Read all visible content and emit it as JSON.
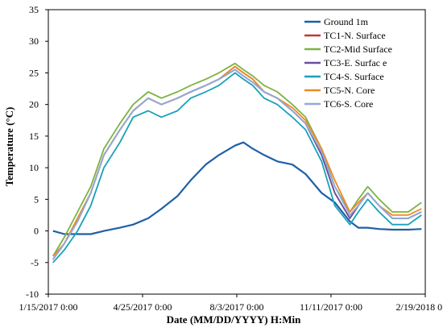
{
  "chart_data": {
    "type": "line",
    "title": "",
    "xlabel": "Date (MM/DD/YYYY) H:Min",
    "ylabel": "Temperature (°C)",
    "xlim": [
      "1/15/2017 0:00",
      "2/19/2018 0:00"
    ],
    "x_ticks": [
      "1/15/2017 0:00",
      "4/25/2017 0:00",
      "8/3/2017 0:00",
      "11/11/2017 0:00",
      "2/19/2018 0:00"
    ],
    "ylim": [
      -10,
      35
    ],
    "y_ticks": [
      "-10",
      "-5",
      "0",
      "5",
      "10",
      "15",
      "20",
      "25",
      "30",
      "35"
    ],
    "grid": false,
    "legend_position": "top-right",
    "x": [
      "2017-01-20",
      "2017-02-01",
      "2017-02-15",
      "2017-03-01",
      "2017-03-15",
      "2017-04-01",
      "2017-04-15",
      "2017-05-01",
      "2017-05-15",
      "2017-06-01",
      "2017-06-15",
      "2017-07-01",
      "2017-07-15",
      "2017-08-01",
      "2017-08-10",
      "2017-08-20",
      "2017-09-01",
      "2017-09-15",
      "2017-10-01",
      "2017-10-15",
      "2017-11-01",
      "2017-11-15",
      "2017-12-01",
      "2017-12-10",
      "2017-12-20",
      "2018-01-01",
      "2018-01-15",
      "2018-02-01",
      "2018-02-15"
    ],
    "series": [
      {
        "name": "Ground 1m",
        "color": "#1F5FA8",
        "values": [
          0,
          -0.5,
          -0.5,
          -0.5,
          0,
          0.5,
          1,
          2,
          3.5,
          5.5,
          8,
          10.5,
          12,
          13.5,
          14,
          13,
          12,
          11,
          10.5,
          9,
          6,
          4.5,
          1.5,
          0.5,
          0.5,
          0.3,
          0.2,
          0.2,
          0.3
        ]
      },
      {
        "name": "TC1-N. Surface",
        "color": "#C0392B",
        "values": [
          -4.5,
          -2,
          2,
          6,
          12,
          16,
          19,
          21,
          20,
          21,
          22,
          23,
          24,
          26,
          25,
          24,
          22,
          21,
          19,
          17,
          12,
          6,
          2,
          4,
          6,
          4,
          2,
          2,
          3
        ]
      },
      {
        "name": "TC2-Mid Surface",
        "color": "#7CB342",
        "values": [
          -4,
          -1,
          3,
          7,
          13,
          17,
          20,
          22,
          21,
          22,
          23,
          24,
          25,
          26.5,
          25.5,
          24.5,
          23,
          22,
          20,
          18,
          13,
          7,
          3,
          5,
          7,
          5,
          3,
          3,
          4.5
        ]
      },
      {
        "name": "TC3-E. Surfac e",
        "color": "#6A4FA0",
        "values": [
          -4.5,
          -2,
          1.5,
          6,
          12,
          16,
          19,
          21,
          20,
          21,
          22,
          23,
          24,
          25.5,
          24.5,
          23.5,
          22,
          21,
          19,
          17,
          12,
          6,
          2,
          4,
          6,
          4,
          2,
          2,
          3
        ]
      },
      {
        "name": "TC4-S. Surface",
        "color": "#17A2B8",
        "values": [
          -5,
          -3,
          0,
          4,
          10,
          14,
          18,
          19,
          18,
          19,
          21,
          22,
          23,
          25,
          24,
          23,
          21,
          20,
          18,
          16,
          11,
          4,
          1,
          3,
          5,
          3,
          1,
          1,
          2.5
        ]
      },
      {
        "name": "TC5-N. Core",
        "color": "#F08A24",
        "values": [
          -4,
          -2,
          2,
          6,
          12,
          16,
          19,
          21,
          20,
          21,
          22,
          23,
          24,
          26,
          25,
          24,
          22,
          21,
          19.5,
          17.5,
          13,
          8,
          3,
          4.5,
          6,
          4,
          2.5,
          2.5,
          3.5
        ]
      },
      {
        "name": "TC6-S. Core",
        "color": "#8FAADC",
        "values": [
          -4.5,
          -2,
          1.5,
          6,
          12,
          16,
          19,
          21,
          20,
          21,
          22,
          23,
          24,
          25.5,
          24.5,
          23.5,
          22,
          21,
          19,
          17,
          12.5,
          7,
          2.5,
          4,
          6,
          4,
          2,
          2,
          3
        ]
      }
    ]
  }
}
